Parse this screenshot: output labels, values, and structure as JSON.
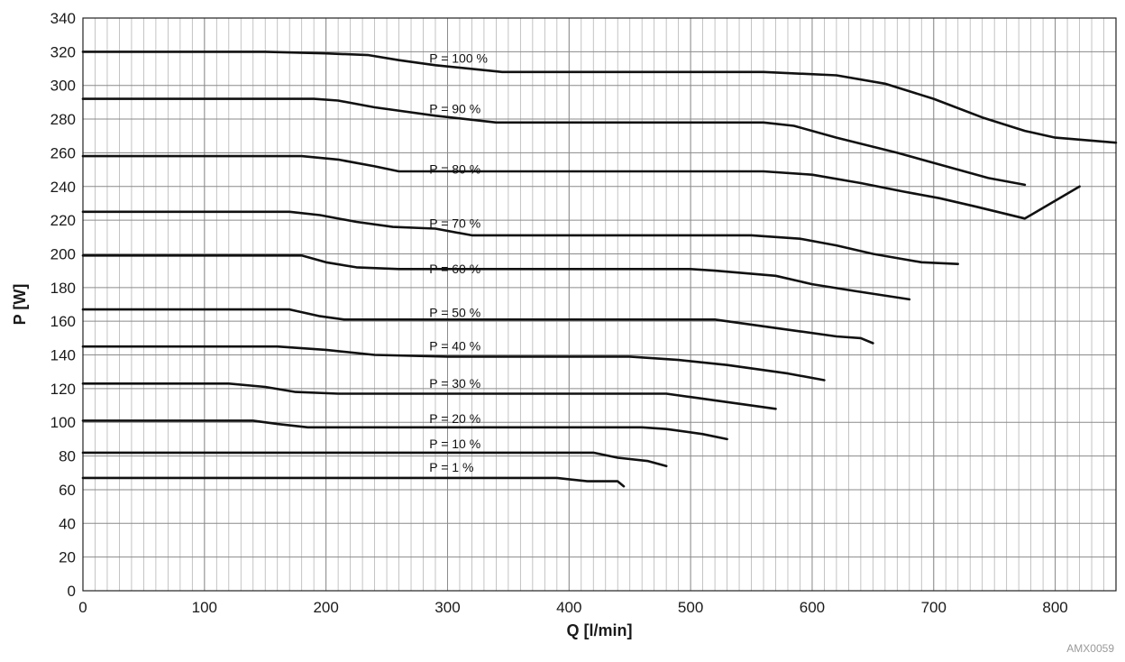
{
  "watermark": "AMX0059",
  "chart_data": {
    "type": "line",
    "xlabel": "Q [l/min]",
    "ylabel": "P [W]",
    "xlim": [
      0,
      850
    ],
    "ylim": [
      0,
      340
    ],
    "xticks": [
      0,
      100,
      200,
      300,
      400,
      500,
      600,
      700,
      800
    ],
    "yticks": [
      0,
      20,
      40,
      60,
      80,
      100,
      120,
      140,
      160,
      180,
      200,
      220,
      240,
      260,
      280,
      300,
      320,
      340
    ],
    "grid": true,
    "minor_x_step": 10,
    "series": [
      {
        "name": "P = 100 %",
        "label_at": [
          285,
          312
        ],
        "points": [
          [
            0,
            320
          ],
          [
            150,
            320
          ],
          [
            200,
            319
          ],
          [
            235,
            318
          ],
          [
            260,
            315
          ],
          [
            290,
            312
          ],
          [
            345,
            308
          ],
          [
            560,
            308
          ],
          [
            620,
            306
          ],
          [
            660,
            301
          ],
          [
            700,
            292
          ],
          [
            740,
            281
          ],
          [
            775,
            273
          ],
          [
            800,
            269
          ],
          [
            850,
            266
          ]
        ]
      },
      {
        "name": "P = 90 %",
        "label_at": [
          285,
          282
        ],
        "points": [
          [
            0,
            292
          ],
          [
            190,
            292
          ],
          [
            210,
            291
          ],
          [
            240,
            287
          ],
          [
            290,
            282
          ],
          [
            340,
            278
          ],
          [
            560,
            278
          ],
          [
            585,
            276
          ],
          [
            620,
            269
          ],
          [
            670,
            260
          ],
          [
            700,
            254
          ],
          [
            745,
            245
          ],
          [
            775,
            241
          ]
        ]
      },
      {
        "name": "P = 80 %",
        "label_at": [
          285,
          246
        ],
        "points": [
          [
            0,
            258
          ],
          [
            180,
            258
          ],
          [
            210,
            256
          ],
          [
            240,
            252
          ],
          [
            260,
            249
          ],
          [
            560,
            249
          ],
          [
            600,
            247
          ],
          [
            640,
            242
          ],
          [
            675,
            237
          ],
          [
            705,
            233
          ],
          [
            735,
            228
          ],
          [
            775,
            221
          ],
          [
            820,
            240
          ]
        ]
      },
      {
        "name": "P = 70 %",
        "label_at": [
          285,
          214
        ],
        "points": [
          [
            0,
            225
          ],
          [
            170,
            225
          ],
          [
            195,
            223
          ],
          [
            225,
            219
          ],
          [
            255,
            216
          ],
          [
            290,
            215
          ],
          [
            320,
            211
          ],
          [
            550,
            211
          ],
          [
            590,
            209
          ],
          [
            620,
            205
          ],
          [
            650,
            200
          ],
          [
            690,
            195
          ],
          [
            720,
            194
          ]
        ]
      },
      {
        "name": "P = 60 %",
        "label_at": [
          285,
          187
        ],
        "points": [
          [
            0,
            199
          ],
          [
            180,
            199
          ],
          [
            200,
            195
          ],
          [
            225,
            192
          ],
          [
            260,
            191
          ],
          [
            340,
            191
          ],
          [
            500,
            191
          ],
          [
            520,
            190
          ],
          [
            570,
            187
          ],
          [
            600,
            182
          ],
          [
            635,
            178
          ],
          [
            680,
            173
          ]
        ]
      },
      {
        "name": "P = 50 %",
        "label_at": [
          285,
          161
        ],
        "points": [
          [
            0,
            167
          ],
          [
            170,
            167
          ],
          [
            195,
            163
          ],
          [
            215,
            161
          ],
          [
            300,
            161
          ],
          [
            520,
            161
          ],
          [
            560,
            157
          ],
          [
            590,
            154
          ],
          [
            620,
            151
          ],
          [
            640,
            150
          ],
          [
            650,
            147
          ]
        ]
      },
      {
        "name": "P = 40 %",
        "label_at": [
          285,
          141
        ],
        "points": [
          [
            0,
            145
          ],
          [
            160,
            145
          ],
          [
            200,
            143
          ],
          [
            240,
            140
          ],
          [
            300,
            139
          ],
          [
            450,
            139
          ],
          [
            490,
            137
          ],
          [
            530,
            134
          ],
          [
            580,
            129
          ],
          [
            610,
            125
          ]
        ]
      },
      {
        "name": "P = 30 %",
        "label_at": [
          285,
          119
        ],
        "points": [
          [
            0,
            123
          ],
          [
            120,
            123
          ],
          [
            150,
            121
          ],
          [
            175,
            118
          ],
          [
            210,
            117
          ],
          [
            300,
            117
          ],
          [
            480,
            117
          ],
          [
            500,
            115
          ],
          [
            530,
            112
          ],
          [
            570,
            108
          ]
        ]
      },
      {
        "name": "P = 20 %",
        "label_at": [
          285,
          98
        ],
        "points": [
          [
            0,
            101
          ],
          [
            140,
            101
          ],
          [
            160,
            99
          ],
          [
            185,
            97
          ],
          [
            300,
            97
          ],
          [
            460,
            97
          ],
          [
            480,
            96
          ],
          [
            510,
            93
          ],
          [
            530,
            90
          ]
        ]
      },
      {
        "name": "P = 10 %",
        "label_at": [
          285,
          83
        ],
        "points": [
          [
            0,
            82
          ],
          [
            140,
            82
          ],
          [
            160,
            82
          ],
          [
            300,
            82
          ],
          [
            400,
            82
          ],
          [
            420,
            82
          ],
          [
            440,
            79
          ],
          [
            465,
            77
          ],
          [
            480,
            74
          ]
        ]
      },
      {
        "name": "P = 1 %",
        "label_at": [
          285,
          69
        ],
        "points": [
          [
            0,
            67
          ],
          [
            300,
            67
          ],
          [
            390,
            67
          ],
          [
            415,
            65
          ],
          [
            440,
            65
          ],
          [
            445,
            62
          ]
        ]
      }
    ]
  }
}
